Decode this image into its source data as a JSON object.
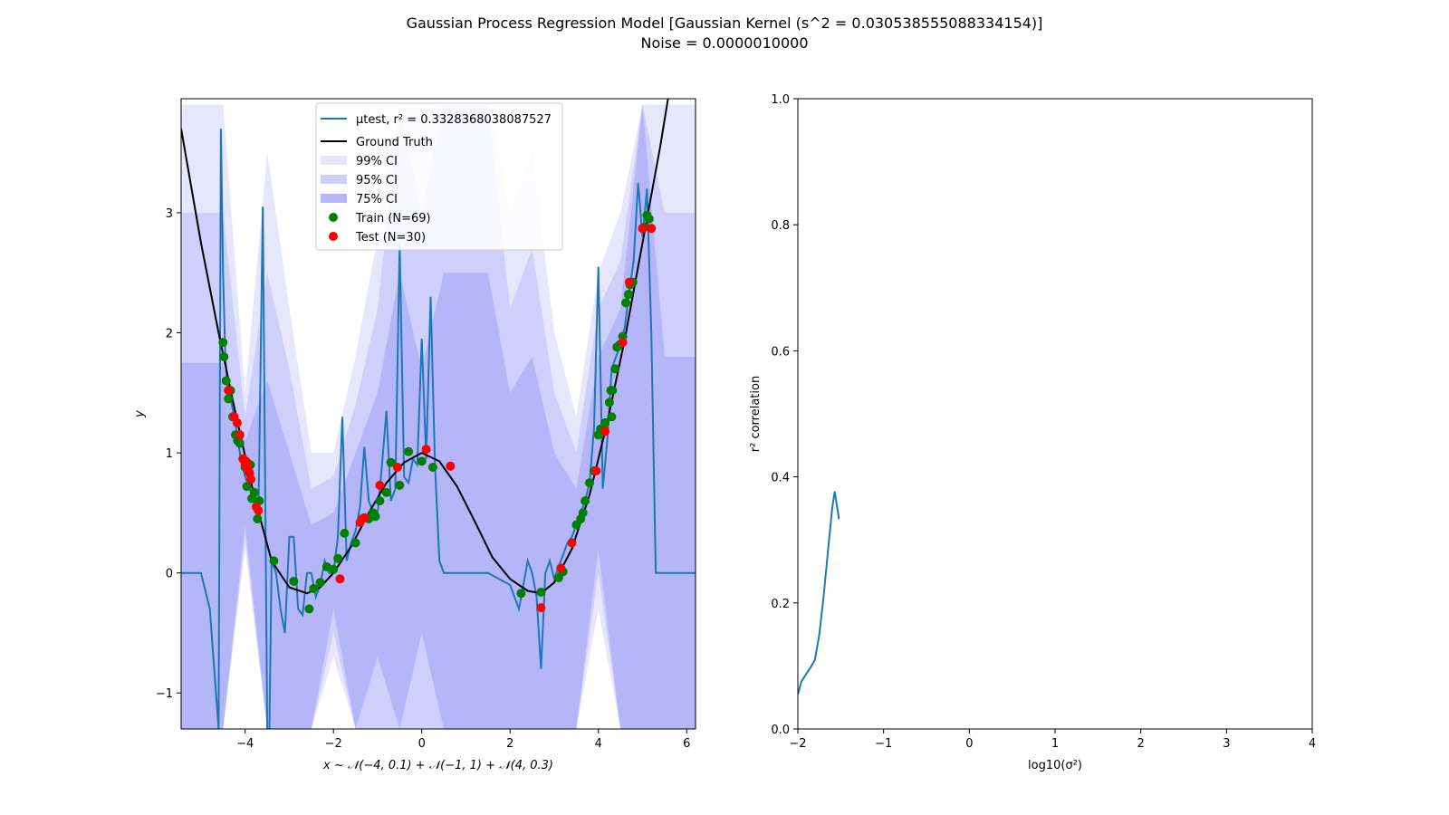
{
  "figure": {
    "title_line1": "Gaussian Process Regression Model [Gaussian Kernel (s^2 = 0.030538555088334154)]",
    "title_line2": "Noise = 0.0000010000"
  },
  "chart_data": [
    {
      "type": "scatter",
      "panel": "left",
      "xlabel": "x ~ 𝒩(−4, 0.1) + 𝒩(−1, 1) + 𝒩(4, 0.3)",
      "ylabel": "y",
      "xlim": [
        -5.45,
        6.2
      ],
      "ylim": [
        -1.3,
        3.95
      ],
      "xticks": [
        -4,
        -2,
        0,
        2,
        4,
        6
      ],
      "xtick_labels": [
        "−4",
        "−2",
        "0",
        "2",
        "4",
        "6"
      ],
      "yticks": [
        -1,
        0,
        1,
        2,
        3
      ],
      "ytick_labels": [
        "−1",
        "0",
        "1",
        "2",
        "3"
      ],
      "grid": false,
      "legend_position": "top-center",
      "legend": {
        "mu": "μtest, r² = 0.3328368038087527",
        "truth": "Ground Truth",
        "ci99": "99% CI",
        "ci95": "95% CI",
        "ci75": "75% CI",
        "train": "Train (N=69)",
        "test": "Test (N=30)"
      },
      "colors": {
        "mu": "#1f77b4",
        "truth": "#000000",
        "ci99": "#e6e6fd",
        "ci95": "#cfcffc",
        "ci75": "#b5b5f9",
        "train": "#008000",
        "test": "#ff0000"
      },
      "ground_truth": {
        "x": [
          -5.45,
          -5.0,
          -4.6,
          -4.2,
          -3.8,
          -3.4,
          -3.0,
          -2.6,
          -2.3,
          -2.0,
          -1.6,
          -1.2,
          -0.8,
          -0.4,
          0.0,
          0.4,
          0.8,
          1.2,
          1.6,
          2.0,
          2.4,
          2.7,
          3.0,
          3.4,
          3.8,
          4.2,
          4.6,
          5.0,
          5.4,
          5.6
        ],
        "y": [
          3.7,
          2.75,
          2.0,
          1.3,
          0.65,
          0.1,
          -0.12,
          -0.17,
          -0.12,
          0.0,
          0.22,
          0.5,
          0.75,
          0.92,
          1.0,
          0.93,
          0.72,
          0.43,
          0.13,
          -0.05,
          -0.15,
          -0.17,
          -0.08,
          0.2,
          0.65,
          1.25,
          1.95,
          2.75,
          3.55,
          4.0
        ]
      },
      "mean_curve": {
        "x": [
          -5.45,
          -5.0,
          -4.8,
          -4.6,
          -4.55,
          -4.5,
          -4.45,
          -4.4,
          -4.3,
          -4.2,
          -4.1,
          -4.0,
          -3.9,
          -3.8,
          -3.7,
          -3.6,
          -3.5,
          -3.45,
          -3.4,
          -3.3,
          -3.2,
          -3.1,
          -3.0,
          -2.9,
          -2.8,
          -2.7,
          -2.6,
          -2.5,
          -2.4,
          -2.3,
          -2.2,
          -2.1,
          -2.0,
          -1.9,
          -1.8,
          -1.7,
          -1.6,
          -1.5,
          -1.4,
          -1.3,
          -1.2,
          -1.1,
          -1.0,
          -0.9,
          -0.8,
          -0.7,
          -0.6,
          -0.5,
          -0.4,
          -0.3,
          -0.2,
          -0.1,
          0.0,
          0.1,
          0.2,
          0.3,
          0.4,
          0.5,
          0.6,
          0.7,
          0.8,
          1.0,
          1.5,
          2.0,
          2.1,
          2.2,
          2.3,
          2.4,
          2.5,
          2.6,
          2.7,
          2.8,
          2.9,
          3.0,
          3.1,
          3.2,
          3.3,
          3.4,
          3.5,
          3.6,
          3.7,
          3.8,
          3.9,
          4.0,
          4.1,
          4.2,
          4.3,
          4.4,
          4.5,
          4.6,
          4.7,
          4.8,
          4.9,
          5.0,
          5.1,
          5.2,
          5.3,
          5.4,
          5.5,
          5.7,
          6.0,
          6.2
        ],
        "y": [
          0.0,
          0.0,
          -0.3,
          -1.3,
          3.7,
          2.5,
          1.8,
          1.55,
          1.4,
          1.2,
          0.95,
          0.8,
          0.7,
          0.6,
          0.45,
          3.05,
          -1.3,
          -1.3,
          0.1,
          0.0,
          -0.3,
          -0.5,
          0.3,
          0.3,
          -0.3,
          -0.35,
          0.0,
          0.0,
          -0.2,
          -0.1,
          0.1,
          0.0,
          0.0,
          0.3,
          1.3,
          0.1,
          0.25,
          0.35,
          0.55,
          1.05,
          0.6,
          0.5,
          0.5,
          0.9,
          1.35,
          0.6,
          0.7,
          2.75,
          0.8,
          0.75,
          0.95,
          0.9,
          1.95,
          0.95,
          2.3,
          0.9,
          0.1,
          0.0,
          0.0,
          0.0,
          0.0,
          0.0,
          0.0,
          -0.1,
          -0.2,
          -0.3,
          -0.1,
          0.1,
          0.0,
          -0.2,
          -0.8,
          0.0,
          0.1,
          -0.05,
          0.05,
          0.15,
          0.25,
          0.3,
          0.4,
          0.5,
          0.6,
          0.75,
          1.2,
          2.55,
          0.7,
          1.1,
          1.7,
          1.8,
          1.9,
          2.05,
          2.35,
          2.6,
          3.25,
          2.8,
          3.2,
          2.0,
          0.0,
          0.0,
          0.0,
          0.0,
          0.0,
          0.0
        ]
      },
      "ci_bands": {
        "ci99": {
          "x": [
            -5.45,
            -4.5,
            -4.0,
            -3.5,
            -3.0,
            -2.5,
            -2.0,
            -1.5,
            -1.0,
            -0.5,
            0.0,
            0.5,
            1.0,
            1.5,
            2.0,
            2.5,
            3.0,
            3.5,
            4.0,
            4.5,
            5.0,
            5.5,
            6.2
          ],
          "upper": [
            3.9,
            3.9,
            1.5,
            3.5,
            2.2,
            1.0,
            1.0,
            1.8,
            2.8,
            3.9,
            3.9,
            3.9,
            3.9,
            3.9,
            3.0,
            3.5,
            2.0,
            1.3,
            2.5,
            3.0,
            3.9,
            3.9,
            3.9
          ],
          "lower": [
            -1.3,
            -1.3,
            0.2,
            -1.3,
            -1.3,
            -1.3,
            -0.7,
            -1.3,
            -1.3,
            -1.3,
            -1.3,
            -1.3,
            -1.3,
            -1.3,
            -1.3,
            -1.3,
            -1.3,
            -1.3,
            -0.3,
            -1.3,
            -1.3,
            -1.3,
            -1.3
          ]
        },
        "ci95": {
          "x": [
            -5.45,
            -4.5,
            -4.0,
            -3.5,
            -3.0,
            -2.5,
            -2.0,
            -1.5,
            -1.0,
            -0.5,
            0.0,
            0.5,
            1.0,
            1.5,
            2.0,
            2.5,
            3.0,
            3.5,
            4.0,
            4.5,
            5.0,
            5.5,
            6.2
          ],
          "upper": [
            3.0,
            3.0,
            1.3,
            2.5,
            1.7,
            0.7,
            0.8,
            1.4,
            2.2,
            3.9,
            3.0,
            3.9,
            3.9,
            3.9,
            2.2,
            2.7,
            1.5,
            1.0,
            2.2,
            2.6,
            3.9,
            3.0,
            3.0
          ],
          "lower": [
            -1.3,
            -1.3,
            0.3,
            -1.3,
            -1.3,
            -1.3,
            -0.5,
            -1.3,
            -1.3,
            -1.3,
            -1.3,
            -1.3,
            -1.3,
            -1.3,
            -1.3,
            -1.3,
            -1.3,
            -1.3,
            0.0,
            -1.3,
            -1.3,
            -1.3,
            -1.3
          ]
        },
        "ci75": {
          "x": [
            -5.45,
            -4.5,
            -4.0,
            -3.5,
            -3.0,
            -2.5,
            -2.0,
            -1.5,
            -1.0,
            -0.5,
            0.0,
            0.5,
            1.0,
            1.5,
            2.0,
            2.5,
            3.0,
            3.5,
            4.0,
            4.5,
            5.0,
            5.5,
            6.2
          ],
          "upper": [
            1.75,
            1.75,
            1.1,
            1.6,
            1.0,
            0.4,
            0.5,
            1.0,
            1.5,
            2.5,
            1.7,
            2.5,
            2.5,
            2.5,
            1.5,
            1.8,
            1.0,
            0.7,
            1.8,
            2.2,
            3.9,
            1.8,
            1.8
          ],
          "lower": [
            -1.3,
            -1.3,
            0.4,
            -1.3,
            -1.3,
            -1.3,
            -0.3,
            -1.3,
            -0.7,
            -1.3,
            -0.5,
            -1.3,
            -1.3,
            -1.3,
            -1.3,
            -1.3,
            -1.3,
            -1.3,
            0.2,
            -1.3,
            -1.3,
            -1.3,
            -1.3
          ]
        }
      },
      "train_points": {
        "x": [
          -4.5,
          -4.48,
          -4.43,
          -4.38,
          -4.33,
          -4.28,
          -4.22,
          -4.17,
          -4.12,
          -4.05,
          -4.0,
          -3.96,
          -3.92,
          -3.88,
          -3.85,
          -3.79,
          -3.72,
          -3.68,
          -3.35,
          -2.9,
          -2.55,
          -2.45,
          -2.3,
          -2.15,
          -2.0,
          -1.9,
          -1.75,
          -1.5,
          -1.2,
          -1.1,
          -1.05,
          -0.95,
          -0.8,
          -0.7,
          -0.5,
          -0.3,
          0.0,
          0.25,
          2.25,
          2.7,
          3.1,
          3.2,
          3.5,
          3.6,
          3.65,
          3.7,
          3.8,
          3.9,
          4.0,
          4.1,
          4.15,
          4.25,
          4.28,
          4.32,
          4.38,
          4.42,
          4.48,
          4.55,
          4.62,
          4.68,
          4.72,
          4.78,
          5.0,
          5.05,
          5.1,
          5.15,
          4.3,
          4.05,
          -4.15
        ],
        "y": [
          1.92,
          1.8,
          1.6,
          1.45,
          1.52,
          1.3,
          1.15,
          1.1,
          1.08,
          0.95,
          0.88,
          0.72,
          0.85,
          0.9,
          0.62,
          0.67,
          0.45,
          0.6,
          0.1,
          -0.07,
          -0.3,
          -0.13,
          -0.08,
          0.05,
          0.03,
          0.12,
          0.33,
          0.25,
          0.45,
          0.5,
          0.47,
          0.6,
          0.67,
          0.92,
          0.73,
          1.01,
          0.93,
          0.88,
          -0.17,
          -0.16,
          -0.04,
          0.01,
          0.4,
          0.45,
          0.5,
          0.6,
          0.75,
          0.85,
          1.15,
          1.2,
          1.25,
          1.42,
          1.52,
          1.52,
          1.7,
          1.88,
          1.9,
          1.97,
          2.25,
          2.32,
          2.4,
          2.42,
          2.87,
          2.88,
          2.98,
          2.95,
          1.3,
          1.2,
          1.1
        ]
      },
      "test_points": {
        "x": [
          -4.38,
          -4.25,
          -4.18,
          -4.12,
          -4.05,
          -3.98,
          -3.95,
          -3.9,
          -3.87,
          -3.75,
          -3.7,
          -1.85,
          -1.4,
          -1.35,
          -0.95,
          -0.55,
          0.1,
          0.65,
          2.7,
          3.15,
          3.4,
          3.95,
          4.15,
          4.55,
          4.7,
          5.0,
          5.2,
          -1.3,
          -3.93,
          -4.0
        ],
        "y": [
          1.52,
          1.3,
          1.25,
          1.15,
          0.95,
          0.93,
          0.9,
          0.83,
          0.78,
          0.55,
          0.52,
          -0.05,
          0.42,
          0.45,
          0.73,
          0.88,
          1.03,
          0.89,
          -0.29,
          0.04,
          0.25,
          0.85,
          1.18,
          1.92,
          2.42,
          2.87,
          2.87,
          0.46,
          0.85,
          0.9
        ]
      }
    },
    {
      "type": "line",
      "panel": "right",
      "xlabel": "log10(σ²)",
      "ylabel": "r² correlation",
      "xlim": [
        -2,
        4
      ],
      "ylim": [
        0.0,
        1.0
      ],
      "xticks": [
        -2,
        -1,
        0,
        1,
        2,
        3,
        4
      ],
      "xtick_labels": [
        "−2",
        "−1",
        "0",
        "1",
        "2",
        "3",
        "4"
      ],
      "yticks": [
        0.0,
        0.2,
        0.4,
        0.6,
        0.8,
        1.0
      ],
      "ytick_labels": [
        "0.0",
        "0.2",
        "0.4",
        "0.6",
        "0.8",
        "1.0"
      ],
      "grid": false,
      "series": [
        {
          "color": "#1f77b4",
          "x": [
            -2.0,
            -1.96,
            -1.9,
            -1.85,
            -1.8,
            -1.75,
            -1.7,
            -1.65,
            -1.6,
            -1.57,
            -1.52
          ],
          "y": [
            0.055,
            0.075,
            0.088,
            0.098,
            0.11,
            0.15,
            0.21,
            0.28,
            0.35,
            0.377,
            0.333
          ]
        }
      ]
    }
  ]
}
